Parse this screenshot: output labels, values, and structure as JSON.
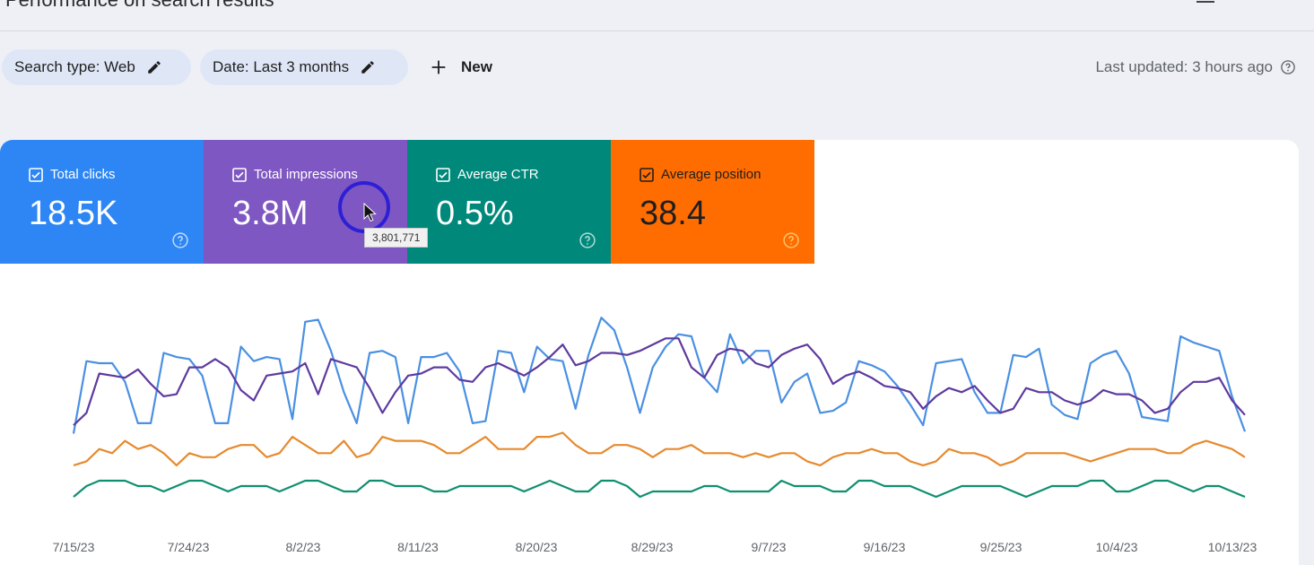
{
  "header": {
    "title": "Performance on search results"
  },
  "filters": {
    "search_type": "Search type: Web",
    "date": "Date: Last 3 months",
    "new_label": "New",
    "last_updated": "Last updated: 3 hours ago"
  },
  "metrics": [
    {
      "label": "Total clicks",
      "value": "18.5K",
      "color": "#2d86f4"
    },
    {
      "label": "Total impressions",
      "value": "3.8M",
      "color": "#7e57c2"
    },
    {
      "label": "Average CTR",
      "value": "0.5%",
      "color": "#00897b"
    },
    {
      "label": "Average position",
      "value": "38.4",
      "color": "#ff6d00"
    }
  ],
  "tooltip": "3,801,771",
  "chart_data": {
    "type": "line",
    "x_ticks": [
      "7/15/23",
      "7/24/23",
      "8/2/23",
      "8/11/23",
      "8/20/23",
      "8/29/23",
      "9/7/23",
      "9/16/23",
      "9/25/23",
      "10/4/23",
      "10/13/23"
    ],
    "series": [
      {
        "name": "Total clicks",
        "color": "#4a90e2",
        "values": [
          20,
          55,
          54,
          54,
          45,
          25,
          25,
          59,
          57,
          56,
          48,
          25,
          25,
          62,
          55,
          57,
          56,
          27,
          74,
          75,
          60,
          40,
          25,
          59,
          60,
          57,
          25,
          57,
          57,
          59,
          50,
          25,
          26,
          60,
          59,
          40,
          62,
          56,
          55,
          32,
          58,
          76,
          70,
          52,
          30,
          52,
          62,
          68,
          67,
          47,
          40,
          68,
          54,
          60,
          60,
          35,
          45,
          49,
          30,
          31,
          35,
          55,
          53,
          50,
          43,
          34,
          24,
          54,
          55,
          56,
          40,
          30,
          30,
          58,
          57,
          61,
          34,
          29,
          27,
          54,
          58,
          60,
          49,
          28,
          27,
          26,
          67,
          64,
          62,
          60,
          38,
          21
        ],
        "_note_y": "relative"
      },
      {
        "name": "Total impressions",
        "color": "#5e3a9e",
        "values": [
          24,
          30,
          49,
          48,
          47,
          51,
          44,
          38,
          39,
          52,
          52,
          56,
          52,
          41,
          36,
          48,
          49,
          50,
          54,
          39,
          56,
          54,
          52,
          42,
          30,
          40,
          48,
          49,
          52,
          52,
          46,
          45,
          52,
          54,
          51,
          48,
          52,
          57,
          63,
          53,
          55,
          59,
          59,
          58,
          60,
          63,
          66,
          66,
          52,
          47,
          58,
          61,
          60,
          54,
          52,
          58,
          61,
          63,
          56,
          44,
          48,
          50,
          47,
          43,
          42,
          40,
          32,
          38,
          42,
          40,
          43,
          36,
          30,
          32,
          42,
          40,
          40,
          36,
          34,
          36,
          41,
          39,
          39,
          36,
          30,
          32,
          40,
          45,
          45,
          47,
          36,
          29
        ]
      },
      {
        "name": "Average position",
        "color": "#e68a2e",
        "values": [
          13,
          14,
          17,
          16,
          19,
          17,
          18,
          16,
          13,
          16,
          15,
          15,
          17,
          18,
          18,
          15,
          16,
          20,
          18,
          16,
          16,
          19,
          15,
          16,
          20,
          19,
          19,
          19,
          18,
          16,
          16,
          18,
          20,
          17,
          17,
          17,
          20,
          20,
          21,
          18,
          16,
          16,
          18,
          18,
          17,
          15,
          17,
          17,
          18,
          16,
          16,
          16,
          15,
          16,
          15,
          16,
          16,
          14,
          13,
          15,
          16,
          16,
          17,
          16,
          16,
          14,
          13,
          14,
          17,
          16,
          16,
          15,
          13,
          14,
          16,
          16,
          16,
          16,
          15,
          14,
          15,
          16,
          17,
          17,
          17,
          16,
          16,
          18,
          19,
          18,
          17,
          15
        ]
      },
      {
        "name": "Average CTR",
        "color": "#0f8f6f",
        "values": [
          6,
          8,
          9,
          9,
          9,
          8,
          8,
          7,
          8,
          9,
          9,
          8,
          7,
          8,
          8,
          8,
          7,
          8,
          9,
          9,
          8,
          7,
          7,
          9,
          9,
          8,
          8,
          8,
          7,
          7,
          8,
          8,
          8,
          8,
          8,
          7,
          8,
          9,
          8,
          7,
          7,
          9,
          9,
          8,
          6,
          7,
          7,
          7,
          7,
          8,
          8,
          7,
          7,
          7,
          7,
          9,
          8,
          8,
          8,
          7,
          7,
          9,
          9,
          8,
          8,
          8,
          7,
          6,
          7,
          8,
          8,
          8,
          8,
          7,
          6,
          7,
          8,
          8,
          8,
          9,
          9,
          7,
          7,
          8,
          9,
          9,
          8,
          7,
          8,
          8,
          7,
          6
        ]
      }
    ]
  }
}
